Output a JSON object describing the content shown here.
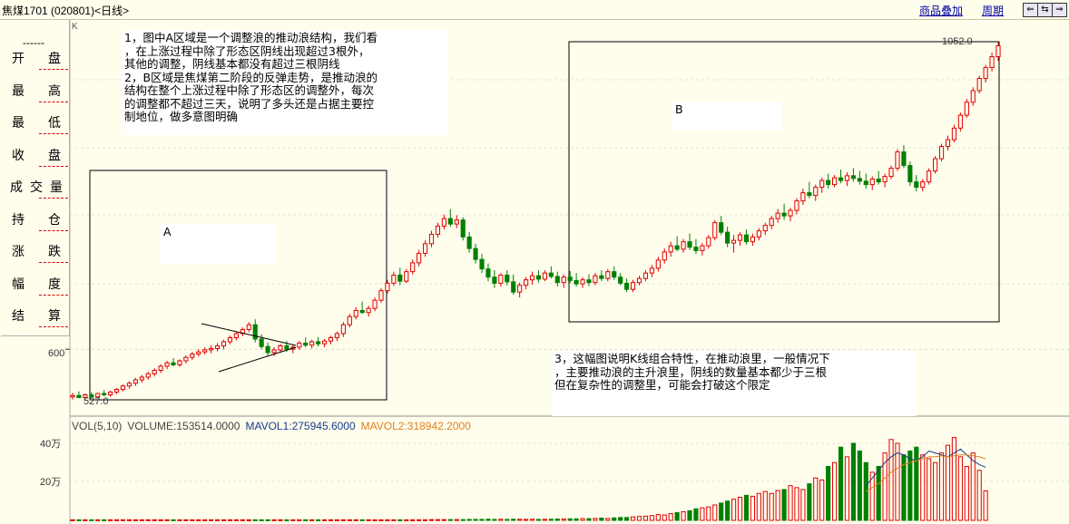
{
  "header": {
    "title": "焦煤1701 (020801)<日线>",
    "overlay_label": "商品叠加",
    "period_label": "周期",
    "nav_buttons": [
      "⇐",
      "⇆",
      "⇒"
    ]
  },
  "info_panel": {
    "separator": "------",
    "rows": [
      "开盘",
      "最高",
      "最低",
      "收盘",
      "成交量",
      "持仓",
      "涨跌",
      "幅度",
      "结算"
    ]
  },
  "price_panel": {
    "axis_label": "K",
    "tick_600": "600",
    "low_label": "527.0",
    "high_label": "1052.0",
    "box_a_label": "A",
    "box_b_label": "B"
  },
  "notes": {
    "note1": "1，图中A区域是一个调整浪的推动浪结构，我们看\n，在上涨过程中除了形态区阴线出现超过3根外，\n其他的调整，阴线基本都没有超过三根阴线\n2，B区域是焦煤第二阶段的反弹走势，是推动浪的\n结构在整个上涨过程中除了形态区的调整外，每次\n的调整都不超过三天，说明了多头还是占据主要控\n制地位，做多意图明确",
    "note3": "3，这幅图说明K线组合特性，在推动浪里，一般情况下\n，主要推动浪的主升浪里，阴线的数量基本都少于三根\n但在复杂性的调整里，可能会打破这个限定"
  },
  "volume_panel": {
    "indicator": "VOL(5,10)",
    "volume": "VOLUME:153514.0000",
    "mavol1": "MAVOL1:275945.6000",
    "mavol2": "MAVOL2:318942.2000",
    "tick_40": "40万",
    "tick_20": "20万"
  },
  "colors": {
    "up": "#e00000",
    "down": "#008000",
    "mavol1": "#1a3a8a",
    "mavol2": "#e08020",
    "background": "#fffdec",
    "grid": "#c8c8c8"
  },
  "chart_data": {
    "type": "candlestick",
    "symbol": "焦煤1701 (020801)",
    "period": "日线",
    "price_ticks": [
      600
    ],
    "annotated_low": 527.0,
    "annotated_high": 1052.0,
    "volume_ticks_wan": [
      20,
      40
    ],
    "candles": [
      [
        530,
        536,
        526,
        532
      ],
      [
        532,
        538,
        528,
        529
      ],
      [
        529,
        535,
        526,
        533
      ],
      [
        533,
        537,
        529,
        530
      ],
      [
        530,
        536,
        528,
        535
      ],
      [
        535,
        540,
        531,
        533
      ],
      [
        533,
        539,
        530,
        537
      ],
      [
        537,
        543,
        534,
        541
      ],
      [
        541,
        548,
        538,
        546
      ],
      [
        546,
        553,
        542,
        550
      ],
      [
        550,
        558,
        546,
        555
      ],
      [
        555,
        562,
        551,
        559
      ],
      [
        559,
        567,
        555,
        564
      ],
      [
        564,
        572,
        560,
        569
      ],
      [
        569,
        578,
        565,
        575
      ],
      [
        575,
        583,
        571,
        580
      ],
      [
        580,
        587,
        575,
        577
      ],
      [
        577,
        585,
        574,
        583
      ],
      [
        583,
        591,
        579,
        588
      ],
      [
        588,
        596,
        584,
        593
      ],
      [
        593,
        600,
        589,
        596
      ],
      [
        596,
        603,
        592,
        599
      ],
      [
        599,
        606,
        594,
        601
      ],
      [
        601,
        609,
        597,
        605
      ],
      [
        605,
        614,
        600,
        611
      ],
      [
        611,
        620,
        607,
        617
      ],
      [
        617,
        626,
        613,
        623
      ],
      [
        623,
        632,
        619,
        629
      ],
      [
        629,
        640,
        625,
        636
      ],
      [
        636,
        644,
        610,
        615
      ],
      [
        615,
        622,
        600,
        604
      ],
      [
        604,
        610,
        590,
        595
      ],
      [
        595,
        603,
        590,
        599
      ],
      [
        599,
        608,
        595,
        605
      ],
      [
        605,
        612,
        596,
        600
      ],
      [
        600,
        607,
        594,
        603
      ],
      [
        603,
        612,
        599,
        609
      ],
      [
        609,
        617,
        603,
        606
      ],
      [
        606,
        614,
        601,
        611
      ],
      [
        611,
        618,
        604,
        608
      ],
      [
        608,
        615,
        603,
        612
      ],
      [
        612,
        620,
        607,
        617
      ],
      [
        617,
        626,
        612,
        623
      ],
      [
        623,
        640,
        618,
        636
      ],
      [
        636,
        652,
        632,
        648
      ],
      [
        648,
        662,
        644,
        657
      ],
      [
        657,
        670,
        652,
        654
      ],
      [
        654,
        664,
        648,
        660
      ],
      [
        660,
        676,
        656,
        672
      ],
      [
        672,
        690,
        668,
        686
      ],
      [
        686,
        702,
        682,
        697
      ],
      [
        697,
        714,
        693,
        709
      ],
      [
        709,
        720,
        694,
        700
      ],
      [
        700,
        718,
        697,
        714
      ],
      [
        714,
        732,
        710,
        727
      ],
      [
        727,
        746,
        722,
        741
      ],
      [
        741,
        760,
        736,
        755
      ],
      [
        755,
        774,
        750,
        769
      ],
      [
        769,
        786,
        764,
        781
      ],
      [
        781,
        798,
        776,
        792
      ],
      [
        792,
        806,
        780,
        784
      ],
      [
        784,
        797,
        778,
        790
      ],
      [
        790,
        794,
        760,
        765
      ],
      [
        765,
        772,
        742,
        748
      ],
      [
        748,
        755,
        726,
        732
      ],
      [
        732,
        740,
        712,
        718
      ],
      [
        718,
        726,
        700,
        706
      ],
      [
        706,
        716,
        690,
        697
      ],
      [
        697,
        712,
        692,
        709
      ],
      [
        709,
        716,
        694,
        699
      ],
      [
        699,
        710,
        680,
        684
      ],
      [
        684,
        698,
        676,
        694
      ],
      [
        694,
        706,
        688,
        702
      ],
      [
        702,
        714,
        695,
        708
      ],
      [
        708,
        716,
        698,
        703
      ],
      [
        703,
        716,
        700,
        712
      ],
      [
        712,
        722,
        704,
        707
      ],
      [
        707,
        714,
        692,
        698
      ],
      [
        698,
        710,
        690,
        706
      ],
      [
        706,
        715,
        697,
        701
      ],
      [
        701,
        712,
        692,
        696
      ],
      [
        696,
        706,
        690,
        702
      ],
      [
        702,
        710,
        693,
        698
      ],
      [
        698,
        712,
        694,
        708
      ],
      [
        708,
        716,
        700,
        704
      ],
      [
        704,
        718,
        700,
        714
      ],
      [
        714,
        722,
        702,
        706
      ],
      [
        706,
        712,
        694,
        697
      ],
      [
        697,
        704,
        684,
        688
      ],
      [
        688,
        702,
        684,
        698
      ],
      [
        698,
        708,
        694,
        704
      ],
      [
        704,
        716,
        700,
        712
      ],
      [
        712,
        724,
        706,
        719
      ],
      [
        719,
        736,
        714,
        731
      ],
      [
        731,
        748,
        726,
        743
      ],
      [
        743,
        758,
        736,
        752
      ],
      [
        752,
        766,
        744,
        747
      ],
      [
        747,
        762,
        742,
        758
      ],
      [
        758,
        770,
        746,
        750
      ],
      [
        750,
        762,
        740,
        745
      ],
      [
        745,
        756,
        738,
        752
      ],
      [
        752,
        768,
        748,
        764
      ],
      [
        764,
        790,
        760,
        786
      ],
      [
        786,
        796,
        768,
        772
      ],
      [
        772,
        780,
        750,
        756
      ],
      [
        756,
        768,
        742,
        760
      ],
      [
        760,
        772,
        752,
        768
      ],
      [
        768,
        776,
        754,
        758
      ],
      [
        758,
        770,
        752,
        765
      ],
      [
        765,
        778,
        760,
        774
      ],
      [
        774,
        786,
        768,
        782
      ],
      [
        782,
        796,
        776,
        792
      ],
      [
        792,
        806,
        786,
        800
      ],
      [
        800,
        814,
        790,
        796
      ],
      [
        796,
        808,
        788,
        804
      ],
      [
        804,
        822,
        798,
        818
      ],
      [
        818,
        836,
        812,
        830
      ],
      [
        830,
        846,
        822,
        826
      ],
      [
        826,
        842,
        818,
        838
      ],
      [
        838,
        852,
        830,
        848
      ],
      [
        848,
        858,
        836,
        842
      ],
      [
        842,
        856,
        838,
        852
      ],
      [
        852,
        864,
        844,
        848
      ],
      [
        848,
        860,
        840,
        855
      ],
      [
        855,
        866,
        846,
        851
      ],
      [
        851,
        862,
        842,
        847
      ],
      [
        847,
        858,
        836,
        842
      ],
      [
        842,
        854,
        834,
        850
      ],
      [
        850,
        862,
        842,
        846
      ],
      [
        846,
        858,
        838,
        854
      ],
      [
        854,
        870,
        850,
        866
      ],
      [
        866,
        894,
        862,
        890
      ],
      [
        890,
        900,
        866,
        870
      ],
      [
        870,
        876,
        840,
        846
      ],
      [
        846,
        856,
        832,
        838
      ],
      [
        838,
        850,
        832,
        846
      ],
      [
        846,
        866,
        842,
        862
      ],
      [
        862,
        884,
        858,
        880
      ],
      [
        880,
        902,
        876,
        898
      ],
      [
        898,
        914,
        892,
        908
      ],
      [
        908,
        930,
        904,
        925
      ],
      [
        925,
        948,
        920,
        944
      ],
      [
        944,
        968,
        940,
        963
      ],
      [
        963,
        985,
        958,
        980
      ],
      [
        980,
        1002,
        976,
        998
      ],
      [
        998,
        1018,
        992,
        1014
      ],
      [
        1014,
        1036,
        1008,
        1030
      ],
      [
        1030,
        1052,
        1024,
        1046
      ]
    ],
    "volumes_wan": [
      0.3,
      0.3,
      0.3,
      0.3,
      0.3,
      0.3,
      0.3,
      0.3,
      0.3,
      0.3,
      0.3,
      0.3,
      0.3,
      0.3,
      0.3,
      0.3,
      0.3,
      0.3,
      0.3,
      0.3,
      0.3,
      0.3,
      0.3,
      0.3,
      0.3,
      0.3,
      0.3,
      0.3,
      0.3,
      0.3,
      0.3,
      0.3,
      0.3,
      0.3,
      0.3,
      0.3,
      0.3,
      0.3,
      0.3,
      0.3,
      0.3,
      0.3,
      0.3,
      0.3,
      0.3,
      0.3,
      0.3,
      0.3,
      0.3,
      0.3,
      0.3,
      0.3,
      0.3,
      0.3,
      0.3,
      0.3,
      0.3,
      0.4,
      0.4,
      0.4,
      0.4,
      0.4,
      0.4,
      0.5,
      0.5,
      0.5,
      0.6,
      0.5,
      0.6,
      0.5,
      0.6,
      0.6,
      0.5,
      0.6,
      0.5,
      0.6,
      0.6,
      0.7,
      0.7,
      0.8,
      0.8,
      0.9,
      0.9,
      1.0,
      1.2,
      1.0,
      1.3,
      1.5,
      1.5,
      1.8,
      2.0,
      2.2,
      2.5,
      3.0,
      2.8,
      3.5,
      4.0,
      4.5,
      5.0,
      6.0,
      6.5,
      7.0,
      8.0,
      9.0,
      10.0,
      11.0,
      12.0,
      13.0,
      12.5,
      14.0,
      15.0,
      14.0,
      15.5,
      16.0,
      18.0,
      17.0,
      16.0,
      19.0,
      22.0,
      21.0,
      28.0,
      30.0,
      38.0,
      33.0,
      40.0,
      36.0,
      30.0,
      25.0,
      28.0,
      35.0,
      42.0,
      40.0,
      34.0,
      36.0,
      38.0,
      34.0,
      32.0,
      30.0,
      35.0,
      39.0,
      43.0,
      33.0,
      28.0,
      35.0,
      26.0,
      15.3
    ],
    "mavol1_wan_recent": [
      18.0,
      22.0,
      26.0,
      30.0,
      33.0,
      35.0,
      34.0,
      32.0,
      31.0,
      33.0,
      36.0,
      35.0,
      34.0,
      33.0,
      35.0,
      37.0,
      34.0,
      31.0,
      29.0,
      27.6
    ],
    "mavol2_wan_recent": [
      15.0,
      17.0,
      19.0,
      22.0,
      25.0,
      27.0,
      29.0,
      30.0,
      31.0,
      32.0,
      33.0,
      33.0,
      33.5,
      33.0,
      33.5,
      34.0,
      34.0,
      33.5,
      33.0,
      31.9
    ]
  }
}
